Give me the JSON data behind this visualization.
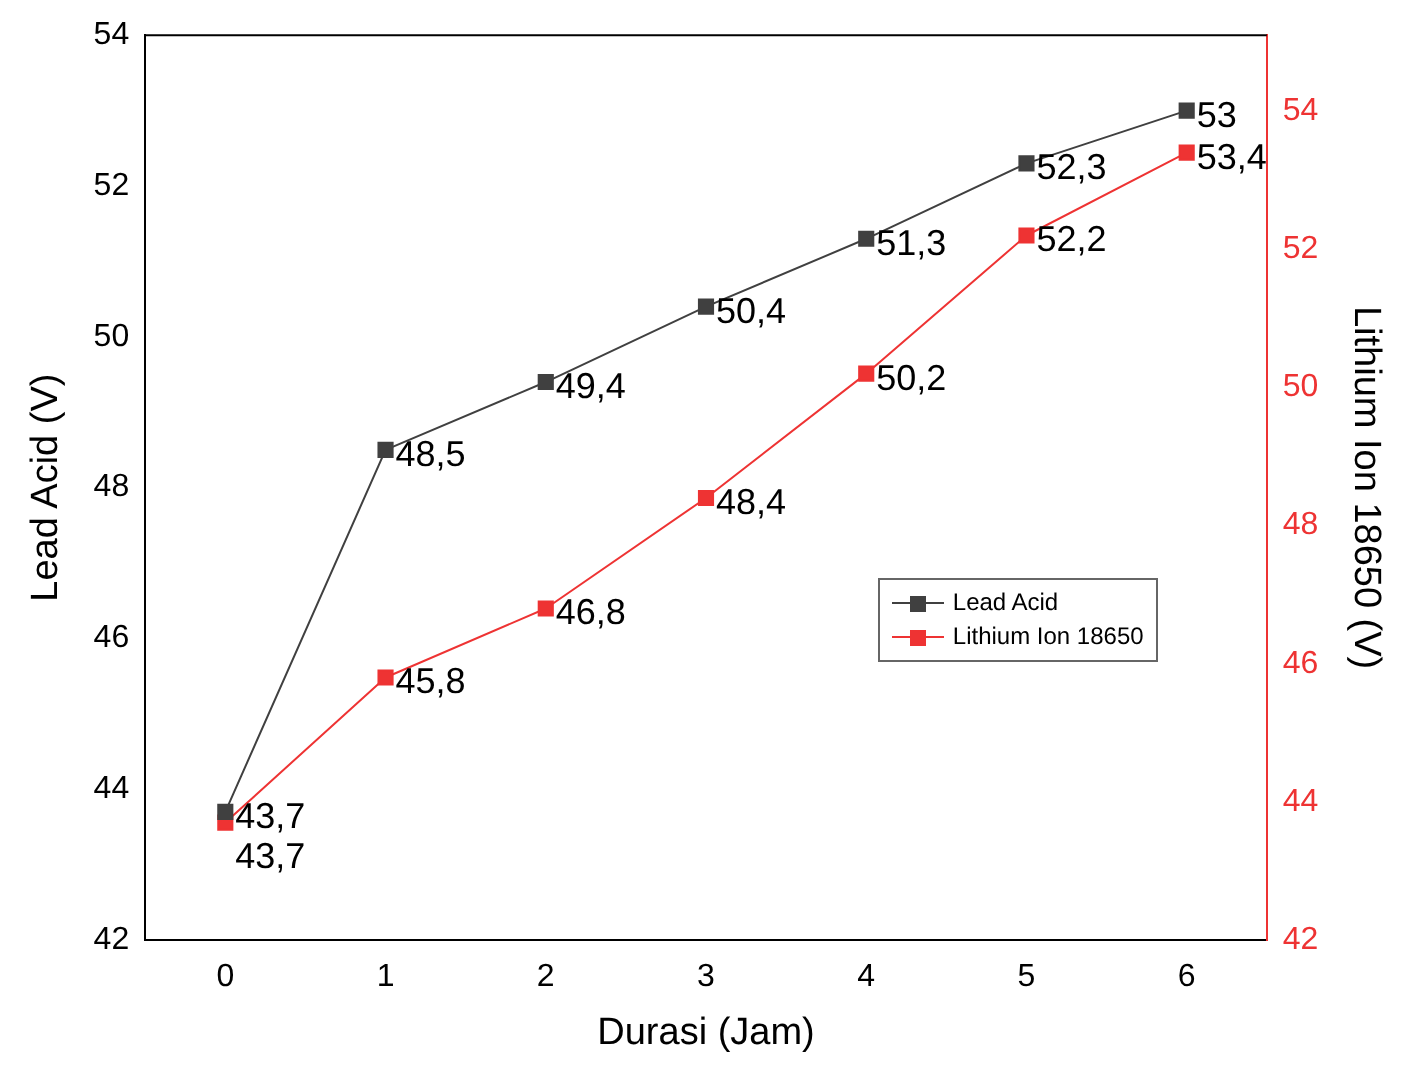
{
  "chart_data": {
    "type": "line",
    "xlabel": "Durasi (Jam)",
    "ylabel": "Lead Acid (V)",
    "y2label": "Lithium Ion 18650 (V)",
    "categories": [
      "0",
      "1",
      "2",
      "3",
      "4",
      "5",
      "6"
    ],
    "series": [
      {
        "name": "Lead Acid",
        "color": "#404040",
        "values": [
          43.7,
          48.5,
          49.4,
          50.4,
          51.3,
          52.3,
          53
        ],
        "value_labels": [
          "43,7",
          "48,5",
          "49,4",
          "50,4",
          "51,3",
          "52,3",
          "53"
        ]
      },
      {
        "name": "Lithium Ion 18650",
        "color": "#ee3333",
        "axis": "y2",
        "values": [
          43.7,
          45.8,
          46.8,
          48.4,
          50.2,
          52.2,
          53.4
        ],
        "value_labels": [
          "43,7",
          "45,8",
          "46,8",
          "48,4",
          "50,2",
          "52,2",
          "53,4"
        ]
      }
    ],
    "ylim": [
      42,
      54
    ],
    "yticks": [
      42,
      44,
      46,
      48,
      50,
      52,
      54
    ],
    "y2lim": [
      42,
      55.1
    ],
    "y2ticks": [
      42,
      44,
      46,
      48,
      50,
      52,
      54
    ],
    "marker": "square",
    "line_style": "solid",
    "grid": false,
    "legend": "right"
  }
}
